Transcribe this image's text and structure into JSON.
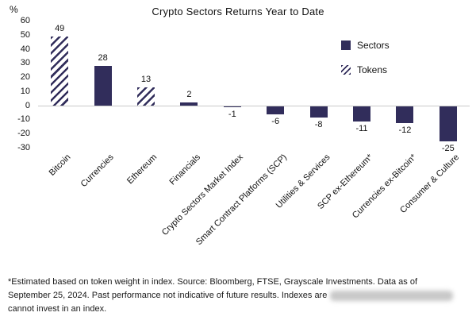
{
  "legend": {
    "sectors": "Sectors",
    "tokens": "Tokens"
  },
  "chart_data": {
    "type": "bar",
    "title": "Crypto Sectors Returns Year to Date",
    "ylabel": "%",
    "xlabel": "",
    "ylim": [
      -30,
      60
    ],
    "ytick_step": 10,
    "grid": false,
    "legend_position": "upper right",
    "categories": [
      "Bitcoin",
      "Currencies",
      "Ethereum",
      "Financials",
      "Crypto Sectors Market Index",
      "Smart Contract Platforms (SCP)",
      "Utilities & Services",
      "SCP ex-Ethereum*",
      "Currencies ex-Bitcoin*",
      "Consumer & Culture"
    ],
    "values": [
      49,
      28,
      13,
      2,
      -1,
      -6,
      -8,
      -11,
      -12,
      -25
    ],
    "bar_styles": [
      "token",
      "sector",
      "token",
      "sector",
      "sector",
      "sector",
      "sector",
      "sector",
      "sector",
      "sector"
    ],
    "colors": {
      "sector_fill": "#312d5b",
      "token_hatch": "#312d5b",
      "axis_line": "#c9c9c9"
    }
  },
  "footnote": {
    "line1": "*Estimated based on token weight in index. Source: Bloomberg, FTSE, Grayscale Investments. Data as of",
    "line2": "September 25, 2024. Past performance not indicative of future results. Indexes are",
    "line3": "cannot invest in an index."
  }
}
